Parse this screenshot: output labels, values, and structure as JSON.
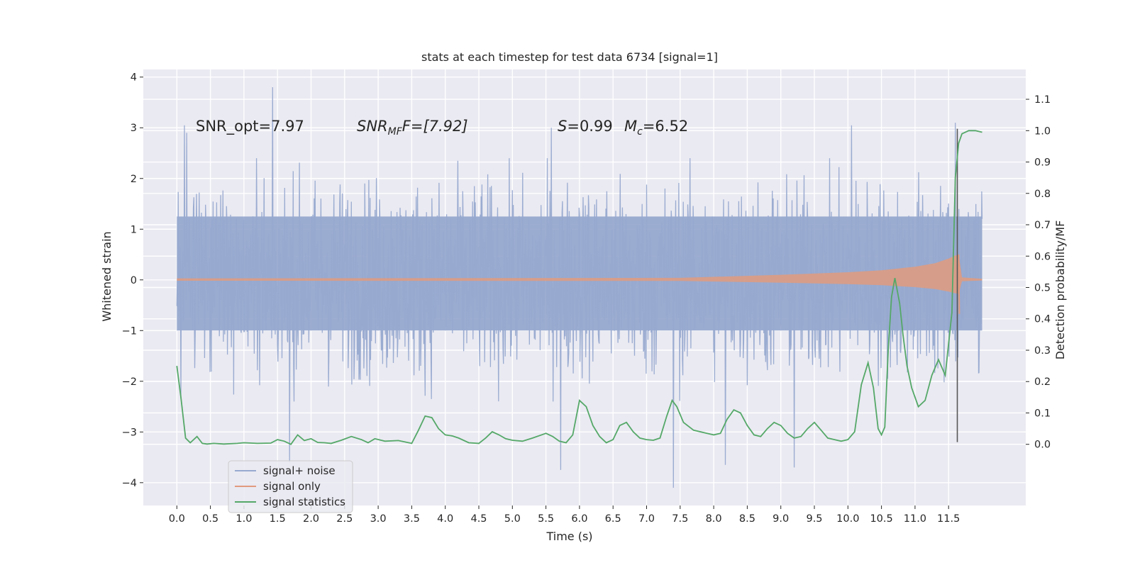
{
  "chart_data": {
    "type": "line",
    "title": "stats at each timestep for test data 6734 [signal=1]",
    "xlabel": "Time (s)",
    "ylabel": "Whitened strain",
    "y2label": "Detection probability/MF",
    "xlim": [
      -0.5,
      12.65
    ],
    "ylim": [
      -4.45,
      4.15
    ],
    "y2lim": [
      -0.195,
      1.195
    ],
    "x_ticks": [
      "0.0",
      "0.5",
      "1.0",
      "1.5",
      "2.0",
      "2.5",
      "3.0",
      "3.5",
      "4.0",
      "4.5",
      "5.0",
      "5.5",
      "6.0",
      "6.5",
      "7.0",
      "7.5",
      "8.0",
      "8.5",
      "9.0",
      "9.5",
      "10.0",
      "10.5",
      "11.0",
      "11.5"
    ],
    "y_ticks": [
      "4",
      "3",
      "2",
      "1",
      "0",
      "−1",
      "−2",
      "−3",
      "−4"
    ],
    "y2_ticks": [
      "0.0",
      "0.1",
      "0.2",
      "0.3",
      "0.4",
      "0.5",
      "0.6",
      "0.7",
      "0.8",
      "0.9",
      "1.0",
      "1.1"
    ],
    "grid": true,
    "legend_position": "bottom-left",
    "annotations": {
      "snr_opt": "SNR_opt=7.97",
      "snr_mf_main": "SNR",
      "snr_mf_sub": "MF",
      "snr_mf_rest": "F=[7.92]",
      "s_sym": "S",
      "s_val": "=0.99",
      "mc_main": "M",
      "mc_sub": "c",
      "mc_val": "=6.52"
    },
    "merger_time": 11.63,
    "series": [
      {
        "name": "signal+ noise",
        "color": "#97a9cf",
        "axis": "left",
        "t_range": [
          0.0,
          12.0
        ],
        "envelope_typical": 1.8,
        "notable_peaks": [
          {
            "t": 0.15,
            "v": 2.9
          },
          {
            "t": 0.11,
            "v": 3.05
          },
          {
            "t": 1.43,
            "v": 3.8
          },
          {
            "t": 5.58,
            "v": 3.0
          },
          {
            "t": 10.05,
            "v": 3.05
          },
          {
            "t": 11.6,
            "v": 3.1
          },
          {
            "t": 1.68,
            "v": -3.6
          },
          {
            "t": 5.72,
            "v": -3.75
          },
          {
            "t": 7.4,
            "v": -4.1
          },
          {
            "t": 8.17,
            "v": -3.65
          },
          {
            "t": 9.2,
            "v": -3.7
          }
        ]
      },
      {
        "name": "signal only",
        "color": "#e19b7e",
        "axis": "left",
        "envelope": [
          {
            "t": 0.0,
            "a": 0.03
          },
          {
            "t": 7.5,
            "a": 0.04
          },
          {
            "t": 8.0,
            "a": 0.06
          },
          {
            "t": 9.0,
            "a": 0.1
          },
          {
            "t": 10.0,
            "a": 0.15
          },
          {
            "t": 10.5,
            "a": 0.19
          },
          {
            "t": 11.0,
            "a": 0.26
          },
          {
            "t": 11.3,
            "a": 0.33
          },
          {
            "t": 11.5,
            "a": 0.42
          },
          {
            "t": 11.6,
            "a": 0.48
          },
          {
            "t": 11.65,
            "a": 0.5
          },
          {
            "t": 11.7,
            "a": 0.05
          },
          {
            "t": 12.0,
            "a": 0.02
          }
        ],
        "merger_dip": -0.67
      },
      {
        "name": "signal statistics",
        "color": "#55a868",
        "axis": "right",
        "t": [
          0.0,
          0.06,
          0.13,
          0.2,
          0.3,
          0.38,
          0.45,
          0.55,
          0.7,
          0.9,
          1.0,
          1.2,
          1.4,
          1.5,
          1.6,
          1.7,
          1.8,
          1.9,
          2.0,
          2.1,
          2.2,
          2.3,
          2.45,
          2.6,
          2.75,
          2.85,
          2.95,
          3.1,
          3.3,
          3.5,
          3.6,
          3.7,
          3.8,
          3.9,
          4.0,
          4.1,
          4.2,
          4.35,
          4.5,
          4.6,
          4.7,
          4.8,
          4.9,
          5.0,
          5.15,
          5.3,
          5.5,
          5.6,
          5.7,
          5.8,
          5.9,
          6.0,
          6.1,
          6.2,
          6.3,
          6.4,
          6.5,
          6.6,
          6.7,
          6.8,
          6.9,
          7.0,
          7.1,
          7.2,
          7.3,
          7.38,
          7.45,
          7.55,
          7.7,
          7.9,
          8.0,
          8.1,
          8.2,
          8.3,
          8.4,
          8.5,
          8.6,
          8.7,
          8.8,
          8.9,
          9.0,
          9.1,
          9.2,
          9.3,
          9.4,
          9.5,
          9.6,
          9.7,
          9.8,
          9.9,
          10.0,
          10.1,
          10.2,
          10.3,
          10.38,
          10.45,
          10.5,
          10.55,
          10.6,
          10.65,
          10.7,
          10.77,
          10.82,
          10.88,
          10.95,
          11.05,
          11.15,
          11.25,
          11.35,
          11.45,
          11.55,
          11.6,
          11.65,
          11.7,
          11.8,
          11.9,
          12.0
        ],
        "values": [
          0.25,
          0.15,
          0.02,
          0.005,
          0.025,
          0.003,
          0.001,
          0.003,
          0.001,
          0.003,
          0.005,
          0.003,
          0.004,
          0.015,
          0.01,
          0.0,
          0.03,
          0.012,
          0.018,
          0.006,
          0.005,
          0.003,
          0.013,
          0.025,
          0.015,
          0.005,
          0.018,
          0.01,
          0.012,
          0.003,
          0.045,
          0.09,
          0.085,
          0.05,
          0.03,
          0.027,
          0.02,
          0.005,
          0.003,
          0.02,
          0.04,
          0.03,
          0.018,
          0.013,
          0.01,
          0.02,
          0.035,
          0.025,
          0.01,
          0.005,
          0.03,
          0.14,
          0.12,
          0.06,
          0.025,
          0.005,
          0.015,
          0.06,
          0.07,
          0.04,
          0.02,
          0.015,
          0.013,
          0.02,
          0.09,
          0.14,
          0.12,
          0.07,
          0.045,
          0.035,
          0.03,
          0.035,
          0.08,
          0.11,
          0.1,
          0.06,
          0.03,
          0.025,
          0.05,
          0.07,
          0.06,
          0.035,
          0.02,
          0.025,
          0.05,
          0.07,
          0.045,
          0.02,
          0.015,
          0.01,
          0.015,
          0.04,
          0.19,
          0.26,
          0.18,
          0.05,
          0.03,
          0.055,
          0.3,
          0.47,
          0.53,
          0.45,
          0.35,
          0.25,
          0.18,
          0.12,
          0.14,
          0.22,
          0.27,
          0.22,
          0.42,
          0.85,
          0.96,
          0.99,
          1.0,
          1.0,
          0.995
        ]
      }
    ]
  }
}
